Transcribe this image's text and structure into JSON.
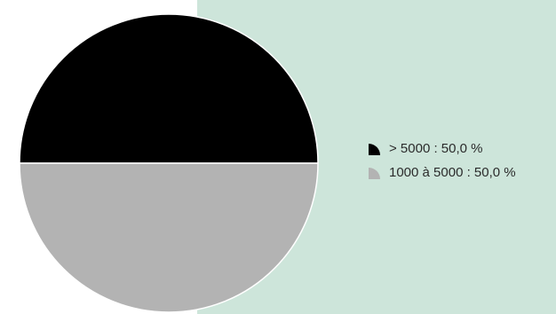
{
  "chart_data": {
    "type": "pie",
    "slices": [
      {
        "label": "> 5000 : 50,0 %",
        "value": 50.0,
        "color": "#000000"
      },
      {
        "label": "1000 à 5000 : 50,0 %",
        "value": 50.0,
        "color": "#b3b3b3"
      }
    ],
    "legend_position": "right"
  },
  "colors": {
    "panel_background": "#cde5da",
    "slice_stroke": "#ffffff"
  }
}
